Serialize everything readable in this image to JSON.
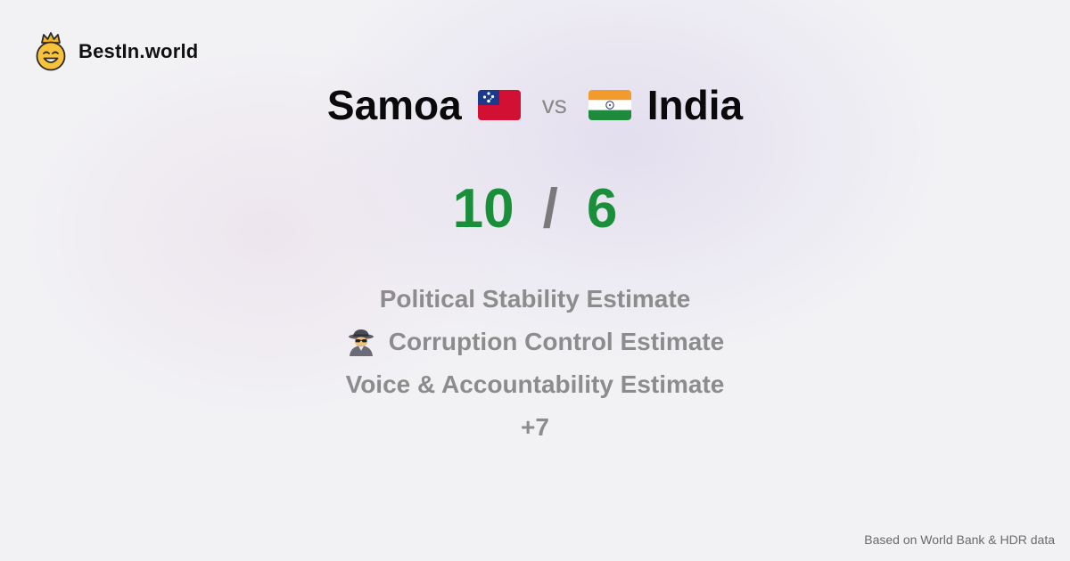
{
  "brand": {
    "name": "BestIn.world",
    "logo_icon": "crown-smiley-icon"
  },
  "comparison": {
    "country_a": {
      "name": "Samoa",
      "flag_icon": "samoa-flag-icon",
      "score": "10"
    },
    "separator": "vs",
    "country_b": {
      "name": "India",
      "flag_icon": "india-flag-icon",
      "score": "6"
    },
    "score_separator": "/"
  },
  "metrics": [
    {
      "label": "Political Stability Estimate"
    },
    {
      "label": "Corruption Control Estimate",
      "icon": "detective-icon"
    },
    {
      "label": "Voice & Accountability Estimate"
    }
  ],
  "more_count": "+7",
  "footnote": "Based on World Bank & HDR data",
  "colors": {
    "score": "#1a8f3a",
    "muted_text": "#8c8c8c",
    "background": "#f2f2f5"
  }
}
